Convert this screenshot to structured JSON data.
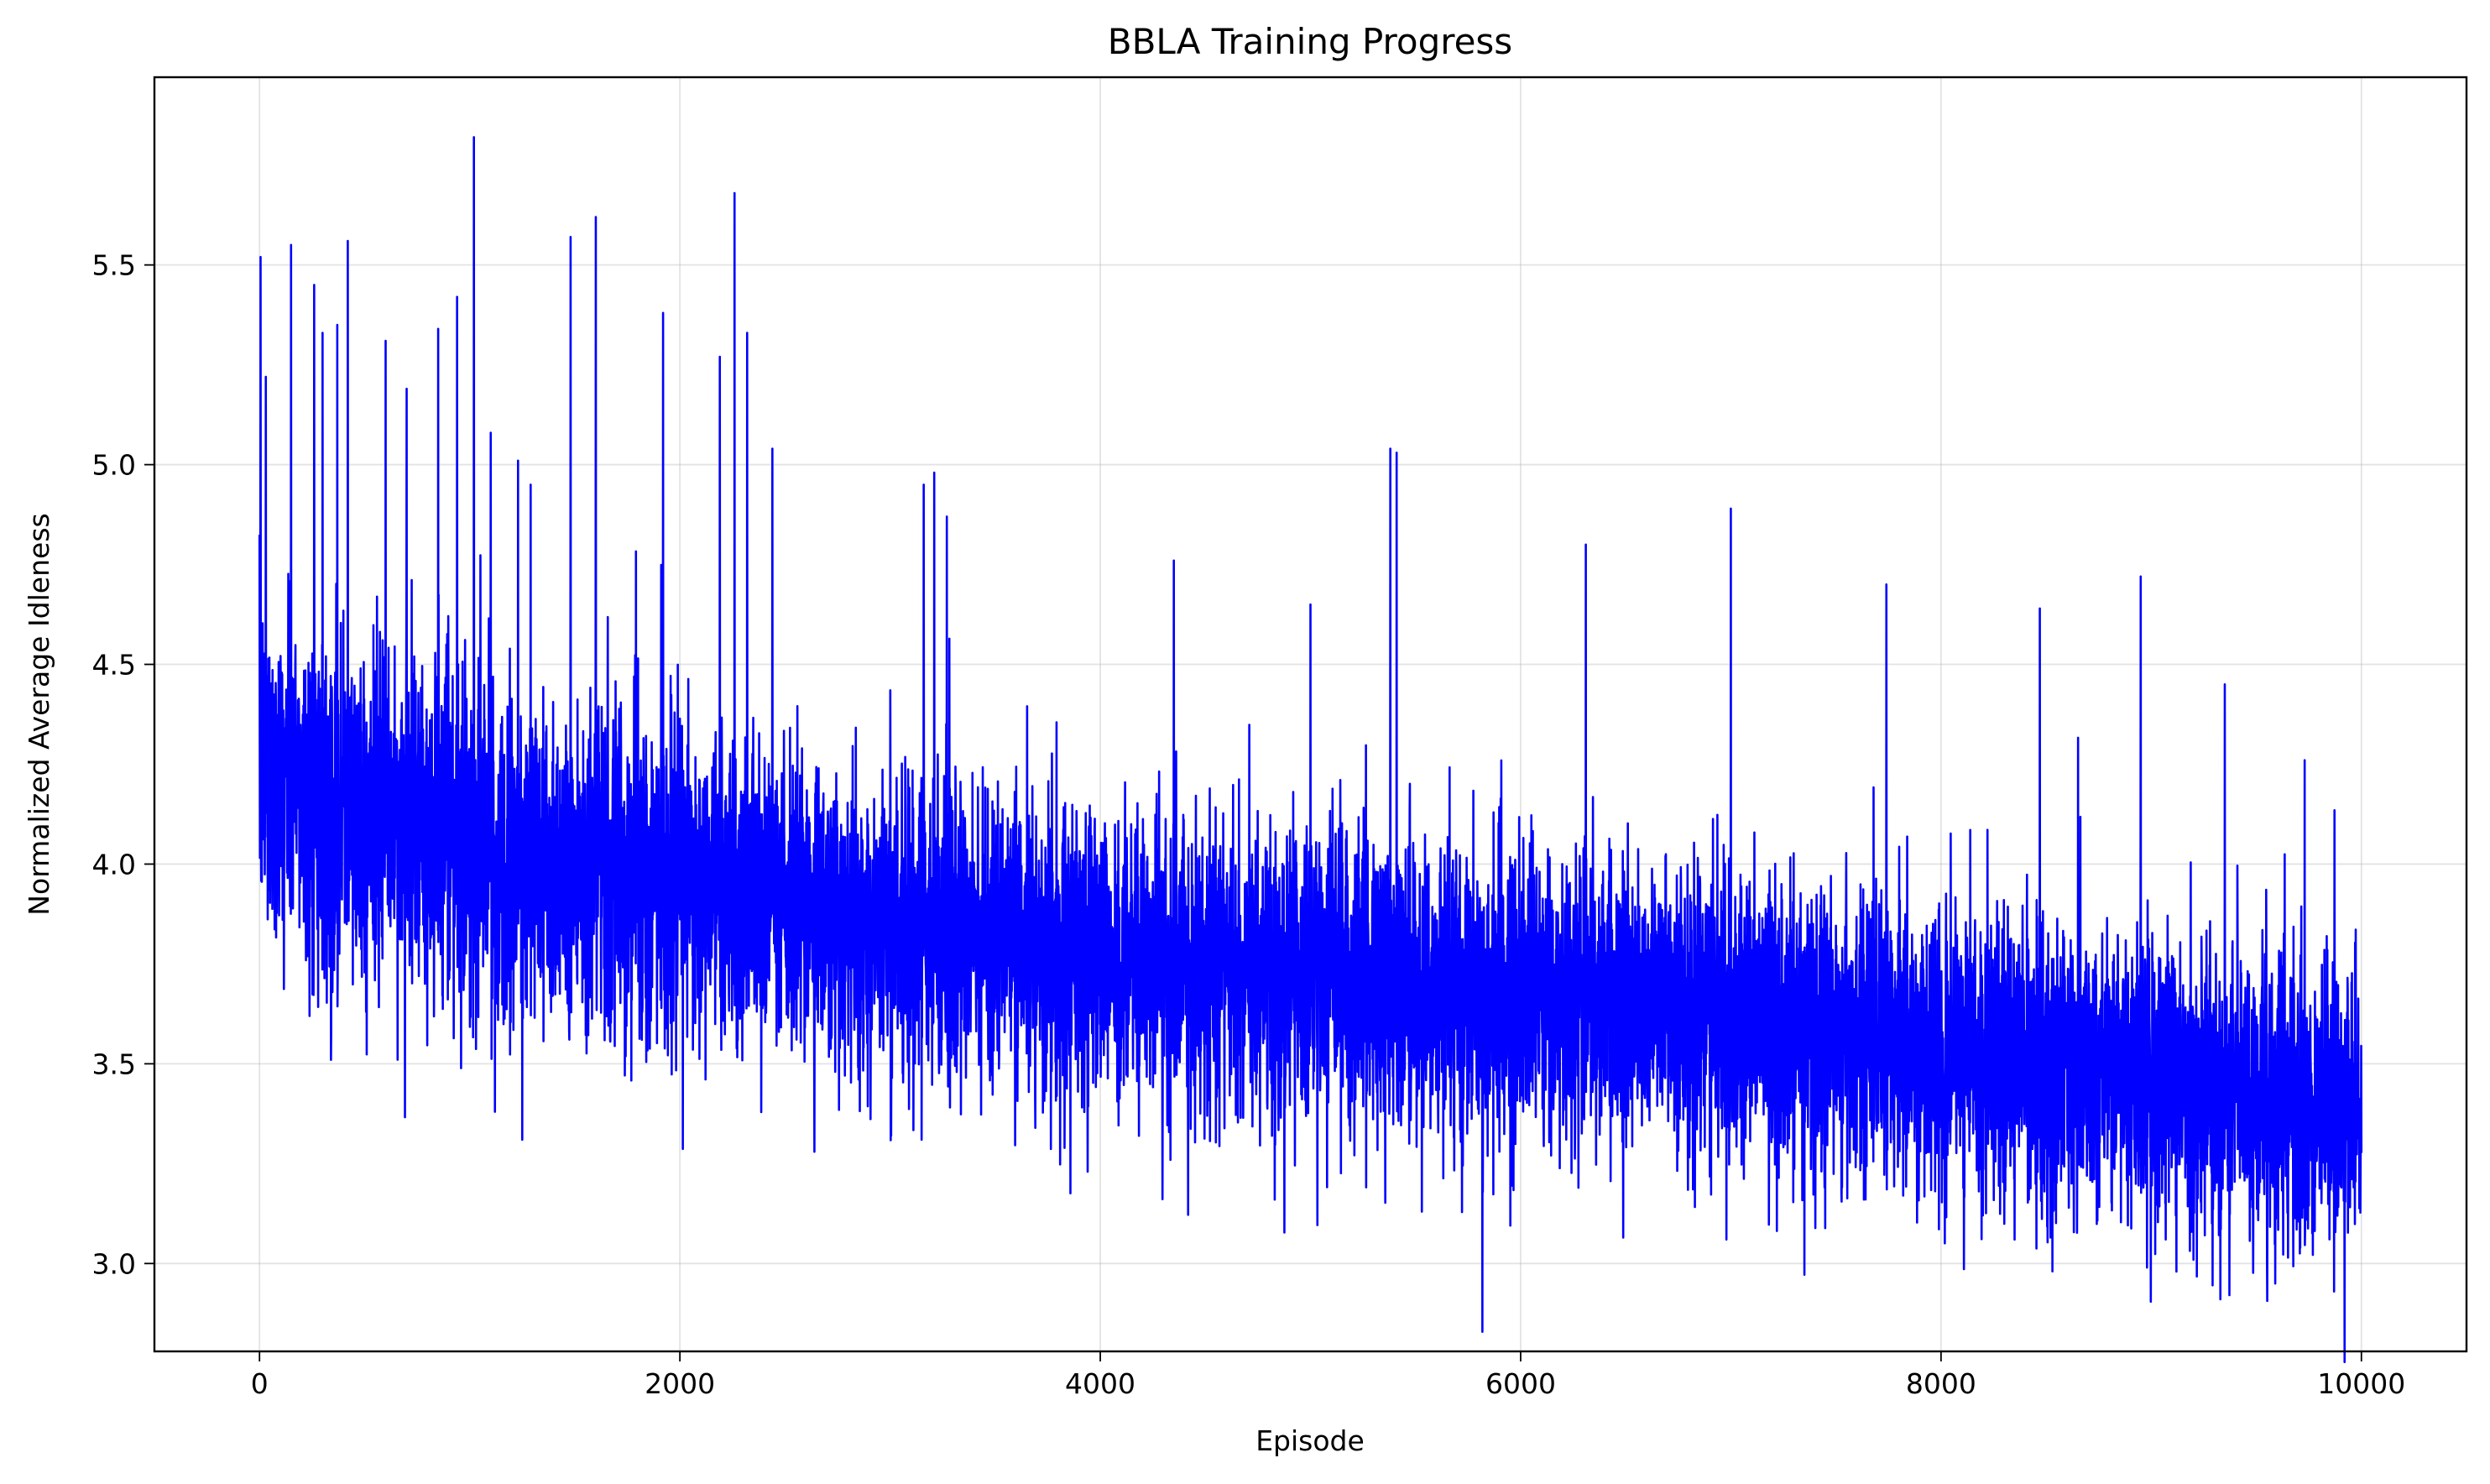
{
  "chart_data": {
    "type": "line",
    "title": "BBLA Training Progress",
    "xlabel": "Episode",
    "ylabel": "Normalized Average Idleness",
    "xlim": [
      -500,
      10500
    ],
    "ylim": [
      2.78,
      5.97
    ],
    "xticks": [
      0,
      2000,
      4000,
      6000,
      8000,
      10000
    ],
    "yticks": [
      3.0,
      3.5,
      4.0,
      4.5,
      5.0,
      5.5
    ],
    "xtick_labels": [
      "0",
      "2000",
      "4000",
      "6000",
      "8000",
      "10000"
    ],
    "ytick_labels": [
      "3.0",
      "3.5",
      "4.0",
      "4.5",
      "5.0",
      "5.5"
    ],
    "grid": true,
    "line_color": "#0000ff",
    "series": [
      {
        "x_range": [
          0,
          10000
        ],
        "trend": {
          "x": [
            0,
            500,
            1000,
            1500,
            2000,
            2500,
            3000,
            3500,
            4000,
            4500,
            5000,
            5500,
            6000,
            6500,
            7000,
            7500,
            8000,
            8500,
            9000,
            9500,
            10000
          ],
          "y": [
            4.25,
            4.12,
            4.05,
            4.0,
            3.95,
            3.9,
            3.85,
            3.82,
            3.78,
            3.75,
            3.72,
            3.7,
            3.67,
            3.64,
            3.61,
            3.58,
            3.55,
            3.5,
            3.46,
            3.42,
            3.38
          ]
        },
        "noise_sd": 0.18,
        "peaks": {
          "x": [
            5,
            30,
            150,
            260,
            300,
            370,
            420,
            600,
            700,
            850,
            940,
            1020,
            1100,
            1230,
            1290,
            1480,
            1600,
            1920,
            2190,
            2260,
            2320,
            2440,
            3160,
            3210,
            3270,
            4350,
            5000,
            5380,
            5410,
            6310,
            7000,
            7740,
            8470,
            8950,
            9350,
            9730
          ],
          "y": [
            5.52,
            5.22,
            5.55,
            5.45,
            5.33,
            5.35,
            5.56,
            5.31,
            5.19,
            5.34,
            5.42,
            5.82,
            5.08,
            5.01,
            4.95,
            5.57,
            5.62,
            5.38,
            5.27,
            5.68,
            5.33,
            5.04,
            4.95,
            4.98,
            4.87,
            4.76,
            4.65,
            5.04,
            5.03,
            4.8,
            4.89,
            4.7,
            4.64,
            4.72,
            4.45,
            4.26
          ]
        },
        "troughs": {
          "x": [
            340,
            1120,
            1250,
            2640,
            3150,
            3940,
            4830,
            5530,
            7820,
            8350,
            8980,
            9120,
            9590,
            9870
          ],
          "y": [
            3.51,
            3.38,
            3.31,
            3.28,
            3.31,
            3.23,
            3.16,
            3.13,
            3.17,
            3.06,
            2.99,
            2.98,
            2.95,
            2.93
          ]
        }
      }
    ]
  }
}
